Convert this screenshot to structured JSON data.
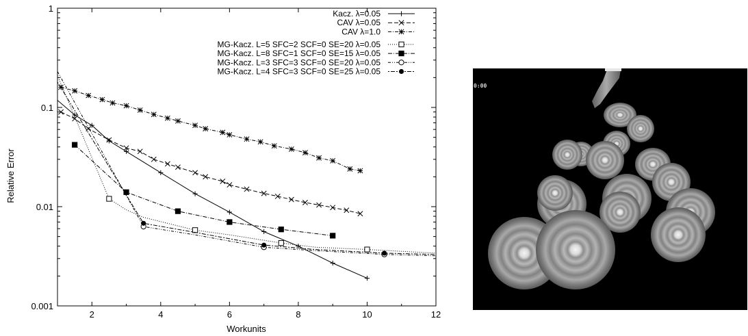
{
  "chart_data": {
    "type": "line",
    "xlabel": "Workunits",
    "ylabel": "Relative Error",
    "xlim": [
      1,
      12
    ],
    "ylim": [
      0.001,
      1
    ],
    "yscale": "log",
    "xticks": [
      2,
      4,
      6,
      8,
      10,
      12
    ],
    "xtick_labels": [
      "2",
      "4",
      "6",
      "8",
      "10",
      "12"
    ],
    "yticks": [
      0.001,
      0.01,
      0.1,
      1
    ],
    "ytick_labels": [
      "0.001",
      "0.01",
      "0.1",
      "1"
    ],
    "grid": false,
    "legend_position": "top-right",
    "series": [
      {
        "name": "Kacz. λ=0.05",
        "dash": "none",
        "marker": "plus",
        "points": [
          [
            1.0,
            0.118
          ],
          [
            1.5,
            0.084
          ],
          [
            2.0,
            0.066
          ],
          [
            2.5,
            0.046
          ],
          [
            3.0,
            0.036
          ],
          [
            4.0,
            0.022
          ],
          [
            5.0,
            0.0135
          ],
          [
            6.0,
            0.0088
          ],
          [
            7.0,
            0.0056
          ],
          [
            8.0,
            0.004
          ],
          [
            9.0,
            0.0027
          ],
          [
            10.0,
            0.0019
          ]
        ],
        "marker_points": [
          [
            1.5,
            0.084
          ],
          [
            2.0,
            0.066
          ],
          [
            2.5,
            0.046
          ],
          [
            3.0,
            0.036
          ],
          [
            4.0,
            0.022
          ],
          [
            5.0,
            0.0135
          ],
          [
            6.0,
            0.0088
          ],
          [
            7.0,
            0.0056
          ],
          [
            8.0,
            0.004
          ],
          [
            9.0,
            0.0027
          ],
          [
            10.0,
            0.0019
          ]
        ]
      },
      {
        "name": "CAV λ=0.05",
        "dash": "6,3",
        "marker": "cross",
        "points": [
          [
            1.1,
            0.09
          ],
          [
            1.5,
            0.077
          ],
          [
            1.9,
            0.061
          ],
          [
            2.5,
            0.047
          ],
          [
            3.0,
            0.039
          ],
          [
            3.4,
            0.036
          ],
          [
            3.8,
            0.03
          ],
          [
            4.2,
            0.027
          ],
          [
            4.5,
            0.025
          ],
          [
            5.0,
            0.022
          ],
          [
            5.3,
            0.02
          ],
          [
            5.8,
            0.018
          ],
          [
            6.0,
            0.0166
          ],
          [
            6.5,
            0.015
          ],
          [
            7.0,
            0.0136
          ],
          [
            7.4,
            0.0127
          ],
          [
            7.8,
            0.0118
          ],
          [
            8.2,
            0.011
          ],
          [
            8.6,
            0.0104
          ],
          [
            9.0,
            0.0098
          ],
          [
            9.4,
            0.0092
          ],
          [
            9.8,
            0.0085
          ]
        ]
      },
      {
        "name": "CAV λ=1.0",
        "dash": "5,2,1,2",
        "marker": "star",
        "points": [
          [
            1.1,
            0.16
          ],
          [
            1.5,
            0.147
          ],
          [
            1.9,
            0.132
          ],
          [
            2.3,
            0.12
          ],
          [
            2.6,
            0.111
          ],
          [
            3.0,
            0.104
          ],
          [
            3.4,
            0.094
          ],
          [
            3.8,
            0.085
          ],
          [
            4.2,
            0.078
          ],
          [
            4.5,
            0.073
          ],
          [
            5.0,
            0.066
          ],
          [
            5.3,
            0.061
          ],
          [
            5.8,
            0.056
          ],
          [
            6.0,
            0.053
          ],
          [
            6.5,
            0.048
          ],
          [
            6.9,
            0.045
          ],
          [
            7.3,
            0.041
          ],
          [
            7.8,
            0.038
          ],
          [
            8.2,
            0.035
          ],
          [
            8.6,
            0.031
          ],
          [
            9.0,
            0.029
          ],
          [
            9.5,
            0.024
          ],
          [
            9.8,
            0.023
          ]
        ]
      },
      {
        "name": "MG-Kacz. L=5 SFC=2 SCF=0 SE=20 λ=0.05",
        "dash": "1,2",
        "marker": "open-square",
        "points": [
          [
            1.0,
            0.21
          ],
          [
            2.5,
            0.012
          ],
          [
            3.0,
            0.0093
          ],
          [
            3.5,
            0.0078
          ],
          [
            5.0,
            0.0058
          ],
          [
            6.0,
            0.0052
          ],
          [
            7.5,
            0.0043
          ],
          [
            8.5,
            0.0039
          ],
          [
            10.0,
            0.0037
          ],
          [
            12.0,
            0.0034
          ]
        ],
        "marker_points": [
          [
            2.5,
            0.012
          ],
          [
            5.0,
            0.0058
          ],
          [
            7.5,
            0.0043
          ],
          [
            10.0,
            0.0037
          ]
        ]
      },
      {
        "name": "MG-Kacz. L=8 SFC=1 SCF=0 SE=15 λ=0.05",
        "dash": "6,2,1,2",
        "marker": "filled-square",
        "points": [
          [
            1.5,
            0.042
          ],
          [
            3.0,
            0.014
          ],
          [
            4.5,
            0.009
          ],
          [
            6.0,
            0.007
          ],
          [
            7.5,
            0.0059
          ],
          [
            9.0,
            0.0051
          ]
        ]
      },
      {
        "name": "MG-Kacz. L=3 SFC=3 SCF=0 SE=20 λ=0.05",
        "dash": "4,2,1,2,1,2",
        "marker": "open-circle",
        "points": [
          [
            1.0,
            0.23
          ],
          [
            3.5,
            0.0063
          ],
          [
            5.0,
            0.0052
          ],
          [
            7.0,
            0.0039
          ],
          [
            8.5,
            0.0036
          ],
          [
            10.5,
            0.0033
          ],
          [
            12.0,
            0.0032
          ]
        ],
        "marker_points": [
          [
            3.5,
            0.0063
          ],
          [
            7.0,
            0.0039
          ],
          [
            10.5,
            0.0033
          ]
        ]
      },
      {
        "name": "MG-Kacz. L=4 SFC=3 SCF=0 SE=25 λ=0.05",
        "dash": "2,2,6,2",
        "marker": "filled-circle",
        "points": [
          [
            1.0,
            0.18
          ],
          [
            3.5,
            0.0068
          ],
          [
            5.0,
            0.0055
          ],
          [
            7.0,
            0.0041
          ],
          [
            8.5,
            0.0037
          ],
          [
            10.5,
            0.0034
          ],
          [
            12.0,
            0.0033
          ]
        ],
        "marker_points": [
          [
            3.5,
            0.0068
          ],
          [
            7.0,
            0.0041
          ],
          [
            10.5,
            0.0034
          ]
        ]
      }
    ]
  },
  "render_view": {
    "timestamp": "0:00",
    "background": "#000000",
    "icon": "volume-rendering-image"
  }
}
